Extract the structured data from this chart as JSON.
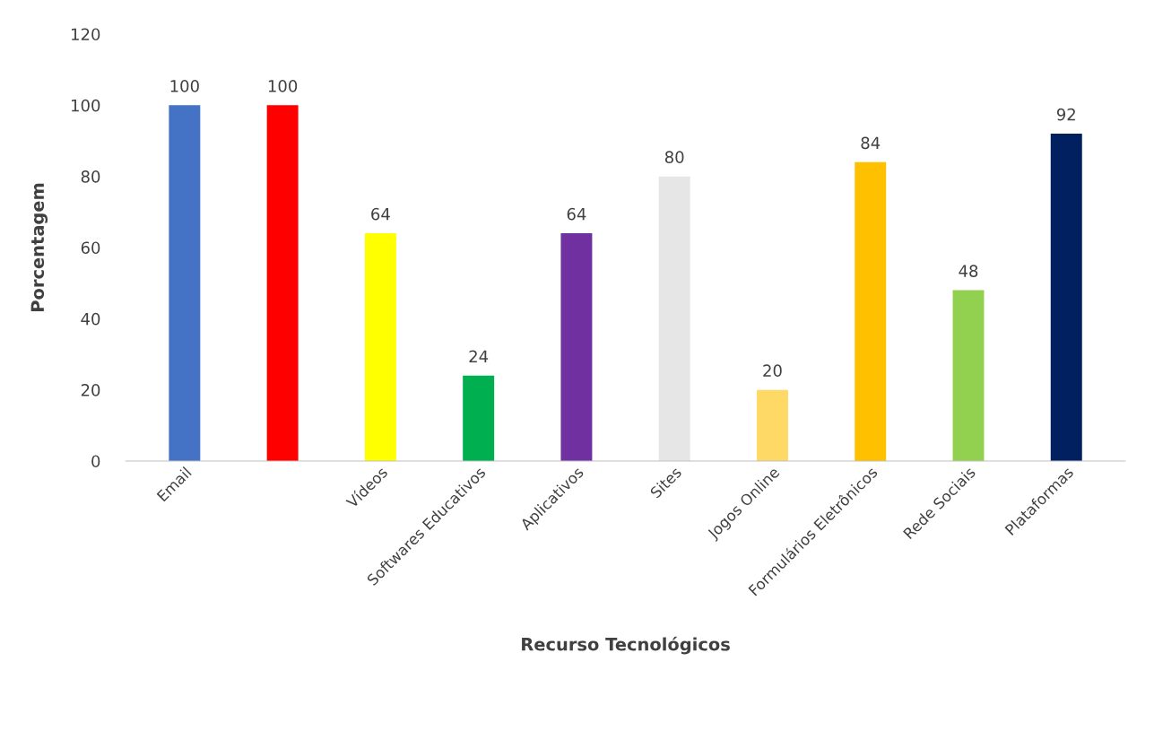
{
  "chart_data": {
    "type": "bar",
    "xlabel": "Recurso Tecnológicos",
    "ylabel": "Porcentagem",
    "categories": [
      "Email",
      null,
      "Vídeos",
      "Softwares Educativos",
      "Aplicativos",
      "Sites",
      "Jogos Online",
      "Formulários Eletrônicos",
      "Rede Sociais",
      "Plataformas"
    ],
    "values": [
      100,
      100,
      64,
      24,
      64,
      80,
      20,
      84,
      48,
      92
    ],
    "colors": [
      "#4472c4",
      "#ff0000",
      "#ffff00",
      "#00b050",
      "#7030a0",
      "#e7e6e6",
      "#ffd966",
      "#ffc000",
      "#92d050",
      "#002060"
    ],
    "ylim": [
      0,
      120
    ],
    "yticks": [
      0,
      20,
      40,
      60,
      80,
      100,
      120
    ],
    "grid": false,
    "data_labels": true
  }
}
